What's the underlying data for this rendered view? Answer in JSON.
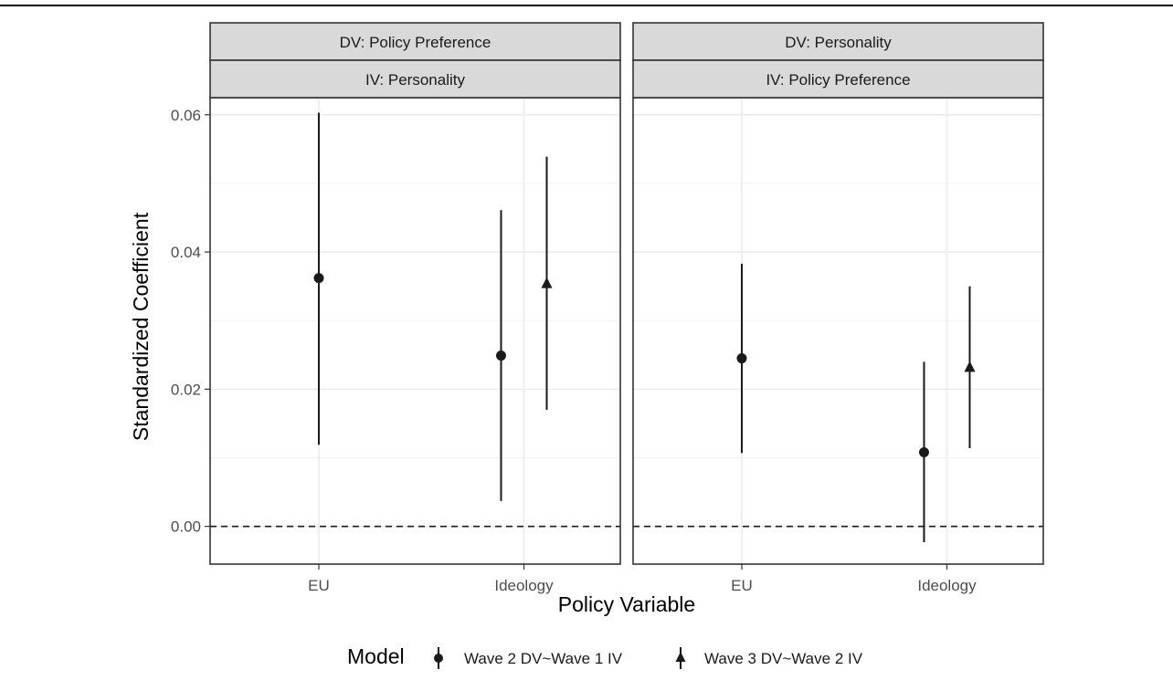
{
  "chart_data": {
    "type": "errorbar",
    "ylabel": "Standardized Coefficient",
    "xlabel": "Policy Variable",
    "ylim": [
      -0.0055,
      0.0625
    ],
    "y_ticks": [
      "0.00",
      "0.02",
      "0.04",
      "0.06"
    ],
    "y_tick_values": [
      0.0,
      0.02,
      0.04,
      0.06
    ],
    "categories": [
      "EU",
      "Ideology"
    ],
    "reference_line": {
      "y": 0.0,
      "style": "dashed"
    },
    "grid": true,
    "legend": {
      "title": "Model",
      "position": "bottom",
      "entries": [
        {
          "label": "Wave 2 DV~Wave 1 IV",
          "shape": "circle"
        },
        {
          "label": "Wave 3 DV~Wave 2 IV",
          "shape": "triangle"
        }
      ]
    },
    "panels": [
      {
        "strip_top": "DV: Policy Preference",
        "strip_bottom": "IV: Personality",
        "series": [
          {
            "legend_index": 0,
            "points": [
              {
                "category": "EU",
                "y": 0.0362,
                "low": 0.0119,
                "high": 0.0603
              },
              {
                "category": "Ideology",
                "y": 0.0249,
                "low": 0.0037,
                "high": 0.0461
              }
            ]
          },
          {
            "legend_index": 1,
            "points": [
              {
                "category": "Ideology",
                "y": 0.0354,
                "low": 0.017,
                "high": 0.0539
              }
            ]
          }
        ]
      },
      {
        "strip_top": "DV: Personality",
        "strip_bottom": "IV: Policy Preference",
        "series": [
          {
            "legend_index": 0,
            "points": [
              {
                "category": "EU",
                "y": 0.0245,
                "low": 0.0107,
                "high": 0.0383
              },
              {
                "category": "Ideology",
                "y": 0.0108,
                "low": -0.0023,
                "high": 0.024
              }
            ]
          },
          {
            "legend_index": 1,
            "points": [
              {
                "category": "Ideology",
                "y": 0.0232,
                "low": 0.0114,
                "high": 0.035
              }
            ]
          }
        ]
      }
    ]
  }
}
